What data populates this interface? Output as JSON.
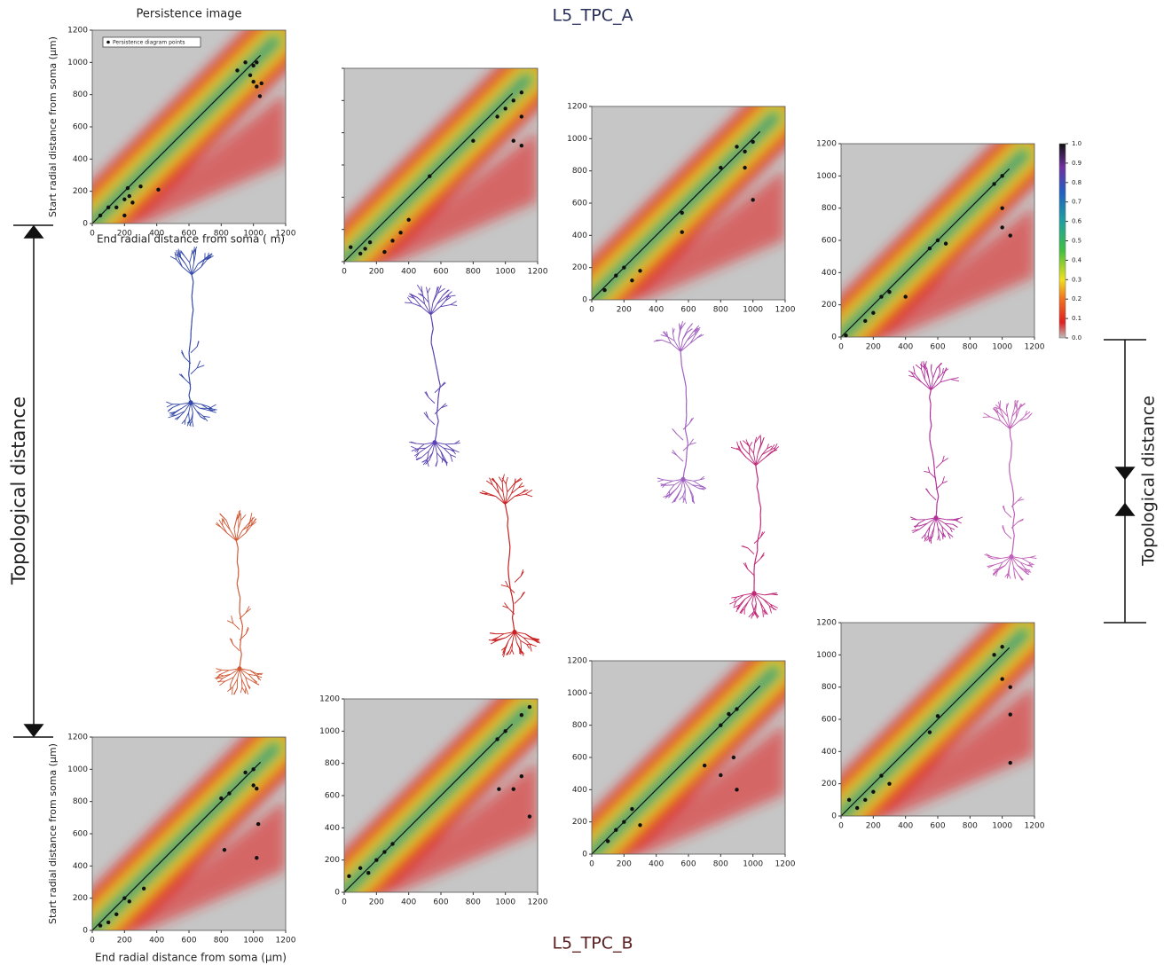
{
  "title_a": "L5_TPC_A",
  "title_b": "L5_TPC_B",
  "panel_title": "Persistence image",
  "legend": "Persistence diagram points",
  "x_label_top": "End radial distance from soma (  m)",
  "x_label_bottom": "End radial distance from soma (μm)",
  "y_label": "Start radial distance from soma (μm)",
  "left_label": "Topological distance",
  "right_label": "Topological distance",
  "axes": {
    "xlim": [
      0,
      1200
    ],
    "ylim": [
      0,
      1200
    ],
    "xticks": [
      0,
      200,
      400,
      600,
      800,
      1000,
      1200
    ],
    "yticks": [
      0,
      200,
      400,
      600,
      800,
      1000,
      1200
    ]
  },
  "colorbar": {
    "lim": [
      0,
      1
    ],
    "ticks": [
      {
        "value": 0,
        "label": "0.0"
      },
      {
        "value": 0.1,
        "label": "0.1"
      },
      {
        "value": 0.2,
        "label": "0.2"
      },
      {
        "value": 0.3,
        "label": "0.3"
      },
      {
        "value": 0.4,
        "label": "0.4"
      },
      {
        "value": 0.5,
        "label": "0.5"
      },
      {
        "value": 0.6,
        "label": "0.6"
      },
      {
        "value": 0.7,
        "label": "0.7"
      },
      {
        "value": 0.8,
        "label": "0.8"
      },
      {
        "value": 0.9,
        "label": "0.9"
      },
      {
        "value": 1,
        "label": "1.0"
      }
    ]
  },
  "panels": [
    {
      "points": [
        [
          50,
          50
        ],
        [
          100,
          100
        ],
        [
          150,
          100
        ],
        [
          200,
          150
        ],
        [
          220,
          220
        ],
        [
          230,
          170
        ],
        [
          250,
          130
        ],
        [
          300,
          230
        ],
        [
          410,
          210
        ],
        [
          200,
          50
        ],
        [
          900,
          950
        ],
        [
          950,
          1000
        ],
        [
          1000,
          980
        ],
        [
          1020,
          1000
        ],
        [
          1000,
          880
        ],
        [
          1020,
          850
        ],
        [
          1040,
          790
        ],
        [
          1050,
          870
        ],
        [
          980,
          920
        ]
      ]
    },
    {
      "points": [
        [
          40,
          90
        ],
        [
          100,
          50
        ],
        [
          130,
          80
        ],
        [
          160,
          120
        ],
        [
          250,
          60
        ],
        [
          300,
          130
        ],
        [
          350,
          180
        ],
        [
          400,
          260
        ],
        [
          530,
          530
        ],
        [
          800,
          750
        ],
        [
          950,
          900
        ],
        [
          1000,
          950
        ],
        [
          1050,
          1000
        ],
        [
          1100,
          1050
        ],
        [
          1100,
          900
        ],
        [
          1050,
          750
        ],
        [
          1100,
          720
        ]
      ]
    },
    {
      "points": [
        [
          80,
          60
        ],
        [
          150,
          150
        ],
        [
          200,
          200
        ],
        [
          250,
          120
        ],
        [
          300,
          180
        ],
        [
          560,
          540
        ],
        [
          560,
          420
        ],
        [
          800,
          820
        ],
        [
          900,
          950
        ],
        [
          950,
          920
        ],
        [
          1000,
          980
        ],
        [
          1000,
          620
        ],
        [
          950,
          820
        ]
      ]
    },
    {
      "points": [
        [
          30,
          10
        ],
        [
          150,
          100
        ],
        [
          200,
          150
        ],
        [
          250,
          250
        ],
        [
          300,
          280
        ],
        [
          400,
          250
        ],
        [
          550,
          550
        ],
        [
          600,
          600
        ],
        [
          650,
          580
        ],
        [
          950,
          950
        ],
        [
          1000,
          1000
        ],
        [
          1000,
          800
        ],
        [
          1050,
          630
        ],
        [
          1000,
          680
        ]
      ]
    },
    {
      "points": [
        [
          50,
          30
        ],
        [
          100,
          50
        ],
        [
          150,
          100
        ],
        [
          200,
          200
        ],
        [
          230,
          180
        ],
        [
          320,
          260
        ],
        [
          800,
          820
        ],
        [
          850,
          850
        ],
        [
          950,
          980
        ],
        [
          1000,
          1000
        ],
        [
          1000,
          900
        ],
        [
          1020,
          880
        ],
        [
          820,
          500
        ],
        [
          1030,
          660
        ],
        [
          1020,
          450
        ]
      ]
    },
    {
      "points": [
        [
          30,
          100
        ],
        [
          100,
          150
        ],
        [
          150,
          120
        ],
        [
          200,
          200
        ],
        [
          250,
          250
        ],
        [
          300,
          300
        ],
        [
          950,
          950
        ],
        [
          1000,
          1000
        ],
        [
          1100,
          1100
        ],
        [
          1150,
          1150
        ],
        [
          1100,
          720
        ],
        [
          1150,
          470
        ],
        [
          960,
          640
        ],
        [
          1050,
          640
        ]
      ]
    },
    {
      "points": [
        [
          100,
          80
        ],
        [
          150,
          150
        ],
        [
          200,
          200
        ],
        [
          250,
          280
        ],
        [
          300,
          180
        ],
        [
          700,
          550
        ],
        [
          800,
          800
        ],
        [
          850,
          870
        ],
        [
          900,
          900
        ],
        [
          880,
          600
        ],
        [
          900,
          400
        ],
        [
          800,
          490
        ]
      ]
    },
    {
      "points": [
        [
          50,
          100
        ],
        [
          100,
          50
        ],
        [
          150,
          100
        ],
        [
          200,
          150
        ],
        [
          250,
          250
        ],
        [
          300,
          200
        ],
        [
          550,
          520
        ],
        [
          600,
          620
        ],
        [
          950,
          1000
        ],
        [
          1000,
          1050
        ],
        [
          1000,
          850
        ],
        [
          1050,
          800
        ],
        [
          1050,
          630
        ],
        [
          1050,
          330
        ]
      ]
    }
  ]
}
